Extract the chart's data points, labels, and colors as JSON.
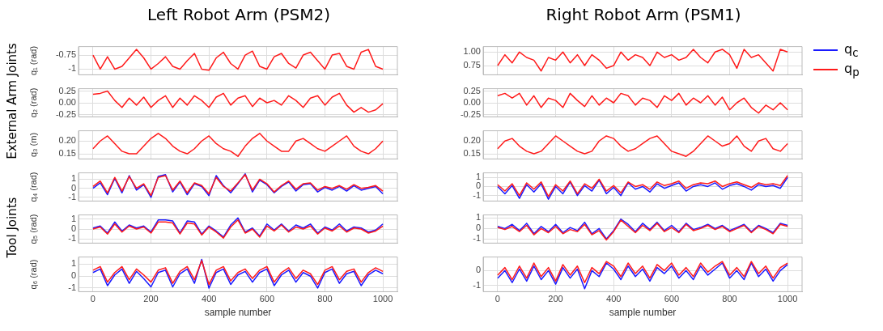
{
  "chart_data": [
    {
      "type": "line",
      "title": "Left Robot Arm (PSM2)",
      "ylabel": "q₁ (rad)",
      "annotations": [
        "External Arm Joints"
      ],
      "grid": true,
      "marker": "none",
      "tick_labels": "y",
      "xlim": [
        -50,
        1050
      ],
      "xticks": [
        0,
        200,
        400,
        600,
        800,
        1000
      ],
      "ylim": [
        -1.1,
        -0.6
      ],
      "yticks": [
        -1.0,
        {
          "value": -0.75,
          "label": "-0.75"
        }
      ],
      "x": [
        0,
        25,
        50,
        75,
        100,
        125,
        150,
        175,
        200,
        225,
        250,
        275,
        300,
        325,
        350,
        375,
        400,
        425,
        450,
        475,
        500,
        525,
        550,
        575,
        600,
        625,
        650,
        675,
        700,
        725,
        750,
        775,
        800,
        825,
        850,
        875,
        900,
        925,
        950,
        975,
        1000
      ],
      "series": [
        {
          "color": "#ff1a1a",
          "values": [
            -0.75,
            -1.0,
            -0.78,
            -1.0,
            -0.95,
            -0.8,
            -0.65,
            -0.8,
            -1.0,
            -0.9,
            -0.78,
            -0.95,
            -1.0,
            -0.85,
            -0.72,
            -1.0,
            -1.02,
            -0.8,
            -0.7,
            -0.9,
            -1.0,
            -0.75,
            -0.68,
            -0.95,
            -1.0,
            -0.78,
            -0.72,
            -0.9,
            -0.98,
            -0.75,
            -0.7,
            -0.85,
            -1.0,
            -0.75,
            -0.72,
            -0.95,
            -1.0,
            -0.7,
            -0.65,
            -0.95,
            -1.0
          ]
        }
      ]
    },
    {
      "type": "line",
      "title": "Right Robot Arm (PSM1)",
      "grid": true,
      "marker": "none",
      "tick_labels": "y",
      "xlim": [
        -50,
        1050
      ],
      "xticks": [
        0,
        200,
        400,
        600,
        800,
        1000
      ],
      "ylim": [
        0.58,
        1.1
      ],
      "yticks": [
        {
          "value": 0.75,
          "label": "0.75"
        },
        {
          "value": 1.0,
          "label": "1.00"
        }
      ],
      "x": [
        0,
        25,
        50,
        75,
        100,
        125,
        150,
        175,
        200,
        225,
        250,
        275,
        300,
        325,
        350,
        375,
        400,
        425,
        450,
        475,
        500,
        525,
        550,
        575,
        600,
        625,
        650,
        675,
        700,
        725,
        750,
        775,
        800,
        825,
        850,
        875,
        900,
        925,
        950,
        975,
        1000
      ],
      "series": [
        {
          "color": "#ff1a1a",
          "values": [
            0.75,
            0.95,
            0.8,
            1.0,
            0.9,
            0.85,
            0.65,
            0.9,
            0.85,
            1.0,
            0.8,
            0.95,
            0.75,
            0.95,
            0.85,
            0.7,
            0.75,
            1.0,
            0.85,
            0.95,
            0.9,
            0.75,
            1.0,
            0.9,
            0.95,
            0.85,
            0.9,
            1.05,
            0.9,
            0.8,
            1.0,
            1.05,
            0.95,
            0.7,
            1.05,
            0.9,
            0.95,
            0.8,
            0.65,
            1.05,
            1.0
          ]
        }
      ]
    },
    {
      "type": "line",
      "ylabel": "q₂ (rad)",
      "grid": true,
      "marker": "none",
      "tick_labels": "y",
      "xlim": [
        -50,
        1050
      ],
      "xticks": [
        0,
        200,
        400,
        600,
        800,
        1000
      ],
      "ylim": [
        -0.3,
        0.3
      ],
      "yticks": [
        {
          "value": -0.25,
          "label": "-0.25"
        },
        {
          "value": 0,
          "label": "0.00"
        },
        {
          "value": 0.25,
          "label": "0.25"
        }
      ],
      "x": [
        0,
        25,
        50,
        75,
        100,
        125,
        150,
        175,
        200,
        225,
        250,
        275,
        300,
        325,
        350,
        375,
        400,
        425,
        450,
        475,
        500,
        525,
        550,
        575,
        600,
        625,
        650,
        675,
        700,
        725,
        750,
        775,
        800,
        825,
        850,
        875,
        900,
        925,
        950,
        975,
        1000
      ],
      "series": [
        {
          "color": "#ff1a1a",
          "values": [
            0.18,
            0.2,
            0.25,
            0.05,
            -0.1,
            0.1,
            -0.05,
            0.12,
            -0.1,
            0.05,
            0.15,
            -0.1,
            0.1,
            -0.05,
            0.15,
            0.05,
            -0.1,
            0.12,
            0.2,
            -0.05,
            0.1,
            0.15,
            -0.08,
            0.1,
            0.0,
            0.05,
            -0.05,
            0.15,
            0.05,
            -0.1,
            0.1,
            0.15,
            -0.05,
            0.12,
            0.2,
            -0.05,
            -0.2,
            -0.1,
            -0.2,
            -0.15,
            -0.02
          ]
        }
      ]
    },
    {
      "type": "line",
      "grid": true,
      "marker": "none",
      "tick_labels": "y",
      "xlim": [
        -50,
        1050
      ],
      "xticks": [
        0,
        200,
        400,
        600,
        800,
        1000
      ],
      "ylim": [
        -0.3,
        0.3
      ],
      "yticks": [
        {
          "value": -0.25,
          "label": "-0.25"
        },
        {
          "value": 0,
          "label": "0.00"
        },
        {
          "value": 0.25,
          "label": "0.25"
        }
      ],
      "x": [
        0,
        25,
        50,
        75,
        100,
        125,
        150,
        175,
        200,
        225,
        250,
        275,
        300,
        325,
        350,
        375,
        400,
        425,
        450,
        475,
        500,
        525,
        550,
        575,
        600,
        625,
        650,
        675,
        700,
        725,
        750,
        775,
        800,
        825,
        850,
        875,
        900,
        925,
        950,
        975,
        1000
      ],
      "series": [
        {
          "color": "#ff1a1a",
          "values": [
            0.15,
            0.2,
            0.1,
            0.2,
            -0.05,
            0.15,
            -0.1,
            0.1,
            0.05,
            -0.1,
            0.2,
            0.05,
            -0.08,
            0.15,
            -0.05,
            0.1,
            0.0,
            0.2,
            0.15,
            -0.05,
            0.1,
            0.05,
            -0.1,
            0.15,
            0.05,
            0.2,
            -0.05,
            0.1,
            0.0,
            0.15,
            -0.05,
            0.12,
            -0.15,
            0.0,
            0.1,
            -0.1,
            -0.22,
            -0.05,
            -0.15,
            0.0,
            -0.15
          ]
        }
      ]
    },
    {
      "type": "line",
      "ylabel": "q₃ (m)",
      "grid": true,
      "marker": "none",
      "tick_labels": "y",
      "xlim": [
        -50,
        1050
      ],
      "xticks": [
        0,
        200,
        400,
        600,
        800,
        1000
      ],
      "ylim": [
        0.13,
        0.24
      ],
      "yticks": [
        {
          "value": 0.15,
          "label": "0.15"
        },
        {
          "value": 0.2,
          "label": "0.20"
        }
      ],
      "x": [
        0,
        25,
        50,
        75,
        100,
        125,
        150,
        175,
        200,
        225,
        250,
        275,
        300,
        325,
        350,
        375,
        400,
        425,
        450,
        475,
        500,
        525,
        550,
        575,
        600,
        625,
        650,
        675,
        700,
        725,
        750,
        775,
        800,
        825,
        850,
        875,
        900,
        925,
        950,
        975,
        1000
      ],
      "series": [
        {
          "color": "#ff1a1a",
          "values": [
            0.17,
            0.2,
            0.22,
            0.19,
            0.16,
            0.15,
            0.15,
            0.18,
            0.21,
            0.23,
            0.21,
            0.18,
            0.16,
            0.15,
            0.17,
            0.2,
            0.22,
            0.19,
            0.17,
            0.16,
            0.14,
            0.18,
            0.21,
            0.23,
            0.2,
            0.18,
            0.16,
            0.16,
            0.2,
            0.21,
            0.19,
            0.17,
            0.16,
            0.18,
            0.2,
            0.22,
            0.18,
            0.16,
            0.15,
            0.17,
            0.2
          ]
        }
      ]
    },
    {
      "type": "line",
      "grid": true,
      "marker": "none",
      "tick_labels": "y",
      "xlim": [
        -50,
        1050
      ],
      "xticks": [
        0,
        200,
        400,
        600,
        800,
        1000
      ],
      "ylim": [
        0.13,
        0.24
      ],
      "yticks": [
        {
          "value": 0.15,
          "label": "0.15"
        },
        {
          "value": 0.2,
          "label": "0.20"
        }
      ],
      "x": [
        0,
        25,
        50,
        75,
        100,
        125,
        150,
        175,
        200,
        225,
        250,
        275,
        300,
        325,
        350,
        375,
        400,
        425,
        450,
        475,
        500,
        525,
        550,
        575,
        600,
        625,
        650,
        675,
        700,
        725,
        750,
        775,
        800,
        825,
        850,
        875,
        900,
        925,
        950,
        975,
        1000
      ],
      "series": [
        {
          "color": "#ff1a1a",
          "values": [
            0.17,
            0.2,
            0.21,
            0.18,
            0.16,
            0.15,
            0.16,
            0.19,
            0.22,
            0.2,
            0.18,
            0.16,
            0.15,
            0.16,
            0.2,
            0.22,
            0.21,
            0.18,
            0.16,
            0.17,
            0.19,
            0.21,
            0.22,
            0.19,
            0.16,
            0.15,
            0.14,
            0.16,
            0.19,
            0.22,
            0.2,
            0.18,
            0.19,
            0.22,
            0.18,
            0.16,
            0.2,
            0.21,
            0.17,
            0.16,
            0.19
          ]
        }
      ]
    },
    {
      "type": "line",
      "ylabel": "q₄ (rad)",
      "annotations": [
        "Tool Joints"
      ],
      "grid": true,
      "marker": "none",
      "tick_labels": "y",
      "xlim": [
        -50,
        1050
      ],
      "xticks": [
        0,
        200,
        400,
        600,
        800,
        1000
      ],
      "ylim": [
        -1.4,
        1.7
      ],
      "yticks": [
        -1,
        0,
        1
      ],
      "x": [
        0,
        25,
        50,
        75,
        100,
        125,
        150,
        175,
        200,
        225,
        250,
        275,
        300,
        325,
        350,
        375,
        400,
        425,
        450,
        475,
        500,
        525,
        550,
        575,
        600,
        625,
        650,
        675,
        700,
        725,
        750,
        775,
        800,
        825,
        850,
        875,
        900,
        925,
        950,
        975,
        1000
      ],
      "series": [
        {
          "color": "#1a1aff",
          "values": [
            0.0,
            0.6,
            -0.7,
            1.1,
            -0.5,
            1.4,
            -0.2,
            0.4,
            -1.0,
            1.3,
            1.5,
            -0.4,
            0.7,
            -0.7,
            0.5,
            0.2,
            -0.8,
            1.4,
            0.3,
            -0.5,
            0.5,
            1.6,
            -0.4,
            0.9,
            0.4,
            -0.5,
            0.2,
            0.7,
            -0.3,
            0.4,
            0.5,
            -0.4,
            0.1,
            -0.2,
            0.2,
            -0.3,
            0.3,
            -0.2,
            0.0,
            0.2,
            -0.6
          ]
        },
        {
          "color": "#ff1a1a",
          "values": [
            0.2,
            0.8,
            -0.5,
            1.2,
            -0.3,
            1.3,
            0.0,
            0.5,
            -0.8,
            1.2,
            1.4,
            -0.2,
            0.8,
            -0.5,
            0.6,
            0.3,
            -0.6,
            1.2,
            0.2,
            -0.3,
            0.6,
            1.5,
            -0.2,
            1.0,
            0.5,
            -0.4,
            0.3,
            0.8,
            -0.1,
            0.5,
            0.6,
            -0.2,
            0.2,
            0.0,
            0.3,
            -0.1,
            0.4,
            0.0,
            0.1,
            0.3,
            -0.3
          ]
        }
      ]
    },
    {
      "type": "line",
      "legend": "top right",
      "grid": true,
      "marker": "none",
      "tick_labels": "y",
      "xlim": [
        -50,
        1050
      ],
      "xticks": [
        0,
        200,
        400,
        600,
        800,
        1000
      ],
      "ylim": [
        -1.6,
        1.5
      ],
      "yticks": [
        -1,
        0,
        1
      ],
      "x": [
        0,
        25,
        50,
        75,
        100,
        125,
        150,
        175,
        200,
        225,
        250,
        275,
        300,
        325,
        350,
        375,
        400,
        425,
        450,
        475,
        500,
        525,
        550,
        575,
        600,
        625,
        650,
        675,
        700,
        725,
        750,
        775,
        800,
        825,
        850,
        875,
        900,
        925,
        950,
        975,
        1000
      ],
      "series": [
        {
          "name": "q$_{c}$",
          "color": "#1a1aff",
          "values": [
            0.0,
            -0.8,
            0.1,
            -1.3,
            0.2,
            -0.6,
            0.3,
            -1.4,
            0.0,
            -0.8,
            0.5,
            -1.0,
            0.1,
            -0.5,
            0.7,
            -0.8,
            -0.1,
            -1.0,
            0.4,
            -0.3,
            0.0,
            -0.6,
            0.3,
            -0.2,
            0.1,
            0.4,
            -0.5,
            0.0,
            0.2,
            0.0,
            0.4,
            -0.3,
            0.1,
            0.3,
            0.0,
            -0.4,
            0.2,
            0.0,
            0.1,
            -0.2,
            1.0
          ]
        },
        {
          "name": "q$_{p}$",
          "color": "#ff1a1a",
          "values": [
            0.2,
            -0.5,
            0.3,
            -1.0,
            0.4,
            -0.3,
            0.5,
            -1.1,
            0.2,
            -0.5,
            0.6,
            -0.8,
            0.3,
            -0.2,
            0.8,
            -0.5,
            0.1,
            -0.7,
            0.5,
            0.0,
            0.2,
            -0.3,
            0.5,
            0.1,
            0.3,
            0.6,
            -0.2,
            0.2,
            0.4,
            0.3,
            0.6,
            0.0,
            0.3,
            0.5,
            0.2,
            -0.1,
            0.4,
            0.2,
            0.3,
            0.1,
            1.2
          ]
        }
      ]
    },
    {
      "type": "line",
      "ylabel": "q₅ (rad)",
      "grid": true,
      "marker": "none",
      "tick_labels": "y",
      "xlim": [
        -50,
        1050
      ],
      "xticks": [
        0,
        200,
        400,
        600,
        800,
        1000
      ],
      "ylim": [
        -1.4,
        1.4
      ],
      "yticks": [
        -1,
        0,
        1
      ],
      "x": [
        0,
        25,
        50,
        75,
        100,
        125,
        150,
        175,
        200,
        225,
        250,
        275,
        300,
        325,
        350,
        375,
        400,
        425,
        450,
        475,
        500,
        525,
        550,
        575,
        600,
        625,
        650,
        675,
        700,
        725,
        750,
        775,
        800,
        825,
        850,
        875,
        900,
        925,
        950,
        975,
        1000
      ],
      "series": [
        {
          "color": "#1a1aff",
          "values": [
            0.1,
            0.3,
            -0.4,
            0.7,
            -0.2,
            0.4,
            0.1,
            0.3,
            -0.3,
            0.9,
            0.9,
            0.8,
            -0.4,
            0.8,
            0.7,
            -0.5,
            0.3,
            -0.2,
            -0.8,
            0.4,
            1.1,
            -0.3,
            0.1,
            -0.7,
            0.5,
            -0.1,
            0.5,
            -0.2,
            0.4,
            0.1,
            0.5,
            -0.4,
            0.2,
            -0.1,
            0.5,
            -0.2,
            0.2,
            0.1,
            -0.3,
            -0.1,
            0.5
          ]
        },
        {
          "color": "#ff1a1a",
          "values": [
            0.0,
            0.2,
            -0.5,
            0.5,
            -0.3,
            0.3,
            0.0,
            0.2,
            -0.4,
            0.7,
            0.7,
            0.6,
            -0.5,
            0.6,
            0.5,
            -0.6,
            0.2,
            -0.3,
            -0.9,
            0.2,
            0.9,
            -0.4,
            0.0,
            -0.8,
            0.3,
            -0.2,
            0.4,
            -0.3,
            0.2,
            0.0,
            0.3,
            -0.5,
            0.1,
            -0.2,
            0.3,
            -0.3,
            0.1,
            0.0,
            -0.4,
            -0.2,
            0.3
          ]
        }
      ]
    },
    {
      "type": "line",
      "grid": true,
      "marker": "none",
      "tick_labels": "y",
      "xlim": [
        -50,
        1050
      ],
      "xticks": [
        0,
        200,
        400,
        600,
        800,
        1000
      ],
      "ylim": [
        -1.4,
        1.3
      ],
      "yticks": [
        -1,
        0,
        1
      ],
      "x": [
        0,
        25,
        50,
        75,
        100,
        125,
        150,
        175,
        200,
        225,
        250,
        275,
        300,
        325,
        350,
        375,
        400,
        425,
        450,
        475,
        500,
        525,
        550,
        575,
        600,
        625,
        650,
        675,
        700,
        725,
        750,
        775,
        800,
        825,
        850,
        875,
        900,
        925,
        950,
        975,
        1000
      ],
      "series": [
        {
          "color": "#1a1aff",
          "values": [
            0.2,
            0.0,
            0.4,
            -0.2,
            0.5,
            -0.5,
            0.2,
            -0.3,
            0.4,
            -0.4,
            0.1,
            -0.2,
            0.6,
            -0.5,
            0.0,
            -1.0,
            -0.2,
            0.9,
            0.4,
            -0.3,
            0.5,
            -0.1,
            0.6,
            -0.2,
            0.3,
            -0.3,
            0.5,
            -0.1,
            0.1,
            0.4,
            0.0,
            0.3,
            -0.2,
            0.1,
            0.4,
            -0.3,
            0.3,
            0.0,
            -0.4,
            0.5,
            0.3
          ]
        },
        {
          "color": "#ff1a1a",
          "values": [
            0.1,
            -0.1,
            0.2,
            -0.3,
            0.3,
            -0.6,
            0.0,
            -0.4,
            0.2,
            -0.5,
            -0.1,
            -0.3,
            0.4,
            -0.6,
            -0.2,
            -1.1,
            -0.3,
            0.8,
            0.2,
            -0.4,
            0.3,
            -0.2,
            0.5,
            -0.3,
            0.1,
            -0.4,
            0.4,
            -0.2,
            0.0,
            0.3,
            -0.1,
            0.2,
            -0.3,
            0.0,
            0.3,
            -0.4,
            0.2,
            -0.1,
            -0.5,
            0.4,
            0.2
          ]
        }
      ]
    },
    {
      "type": "line",
      "ylabel": "q₆ (rad)",
      "xlabel": "sample number",
      "grid": true,
      "marker": "none",
      "xlim": [
        -50,
        1050
      ],
      "xticks": [
        0,
        200,
        400,
        600,
        800,
        1000
      ],
      "ylim": [
        -1.3,
        1.6
      ],
      "yticks": [
        -1,
        0,
        1
      ],
      "x": [
        0,
        25,
        50,
        75,
        100,
        125,
        150,
        175,
        200,
        225,
        250,
        275,
        300,
        325,
        350,
        375,
        400,
        425,
        450,
        475,
        500,
        525,
        550,
        575,
        600,
        625,
        650,
        675,
        700,
        725,
        750,
        775,
        800,
        825,
        850,
        875,
        900,
        925,
        950,
        975,
        1000
      ],
      "series": [
        {
          "color": "#1a1aff",
          "values": [
            0.3,
            0.6,
            -0.8,
            0.1,
            0.6,
            -0.6,
            0.4,
            -0.2,
            -0.9,
            0.3,
            0.5,
            -0.9,
            0.2,
            0.6,
            -0.6,
            1.4,
            -1.0,
            0.3,
            0.6,
            -0.7,
            0.1,
            0.4,
            -0.5,
            0.3,
            0.6,
            -0.8,
            0.1,
            0.5,
            -0.5,
            0.3,
            0.0,
            -1.0,
            0.3,
            0.6,
            -0.6,
            0.2,
            0.4,
            -0.8,
            0.1,
            0.5,
            0.2
          ]
        },
        {
          "color": "#ff1a1a",
          "values": [
            0.5,
            0.8,
            -0.5,
            0.3,
            0.8,
            -0.3,
            0.6,
            0.1,
            -0.5,
            0.5,
            0.7,
            -0.6,
            0.4,
            0.8,
            -0.3,
            1.3,
            -0.7,
            0.5,
            0.8,
            -0.4,
            0.3,
            0.6,
            -0.2,
            0.5,
            0.8,
            -0.5,
            0.3,
            0.7,
            -0.2,
            0.5,
            0.2,
            -0.7,
            0.5,
            0.8,
            -0.3,
            0.4,
            0.6,
            -0.5,
            0.3,
            0.7,
            0.4
          ]
        }
      ]
    },
    {
      "type": "line",
      "xlabel": "sample number",
      "grid": true,
      "marker": "none",
      "xlim": [
        -50,
        1050
      ],
      "xticks": [
        0,
        200,
        400,
        600,
        800,
        1000
      ],
      "ylim": [
        -1.4,
        0.9
      ],
      "yticks": [
        -1,
        0
      ],
      "x": [
        0,
        25,
        50,
        75,
        100,
        125,
        150,
        175,
        200,
        225,
        250,
        275,
        300,
        325,
        350,
        375,
        400,
        425,
        450,
        475,
        500,
        525,
        550,
        575,
        600,
        625,
        650,
        675,
        700,
        725,
        750,
        775,
        800,
        825,
        850,
        875,
        900,
        925,
        950,
        975,
        1000
      ],
      "series": [
        {
          "color": "#1a1aff",
          "values": [
            -0.5,
            0.0,
            -0.8,
            0.1,
            -0.7,
            0.3,
            -0.6,
            0.0,
            -0.9,
            0.2,
            -0.5,
            0.1,
            -1.2,
            0.0,
            -0.4,
            0.5,
            0.1,
            -0.6,
            0.3,
            -0.4,
            0.1,
            -0.7,
            0.2,
            -0.2,
            0.3,
            -0.5,
            0.0,
            -0.6,
            0.3,
            -0.3,
            0.1,
            0.5,
            -0.5,
            0.0,
            -0.6,
            0.5,
            -0.4,
            0.1,
            -0.7,
            0.0,
            0.4
          ]
        },
        {
          "color": "#ff1a1a",
          "values": [
            -0.3,
            0.2,
            -0.6,
            0.3,
            -0.5,
            0.5,
            -0.4,
            0.2,
            -0.7,
            0.4,
            -0.3,
            0.3,
            -0.8,
            0.2,
            -0.2,
            0.6,
            0.3,
            -0.4,
            0.5,
            -0.2,
            0.3,
            -0.5,
            0.4,
            0.0,
            0.5,
            -0.3,
            0.2,
            -0.4,
            0.5,
            -0.1,
            0.3,
            0.6,
            -0.3,
            0.2,
            -0.4,
            0.6,
            -0.2,
            0.3,
            -0.5,
            0.2,
            0.5
          ]
        }
      ]
    }
  ]
}
